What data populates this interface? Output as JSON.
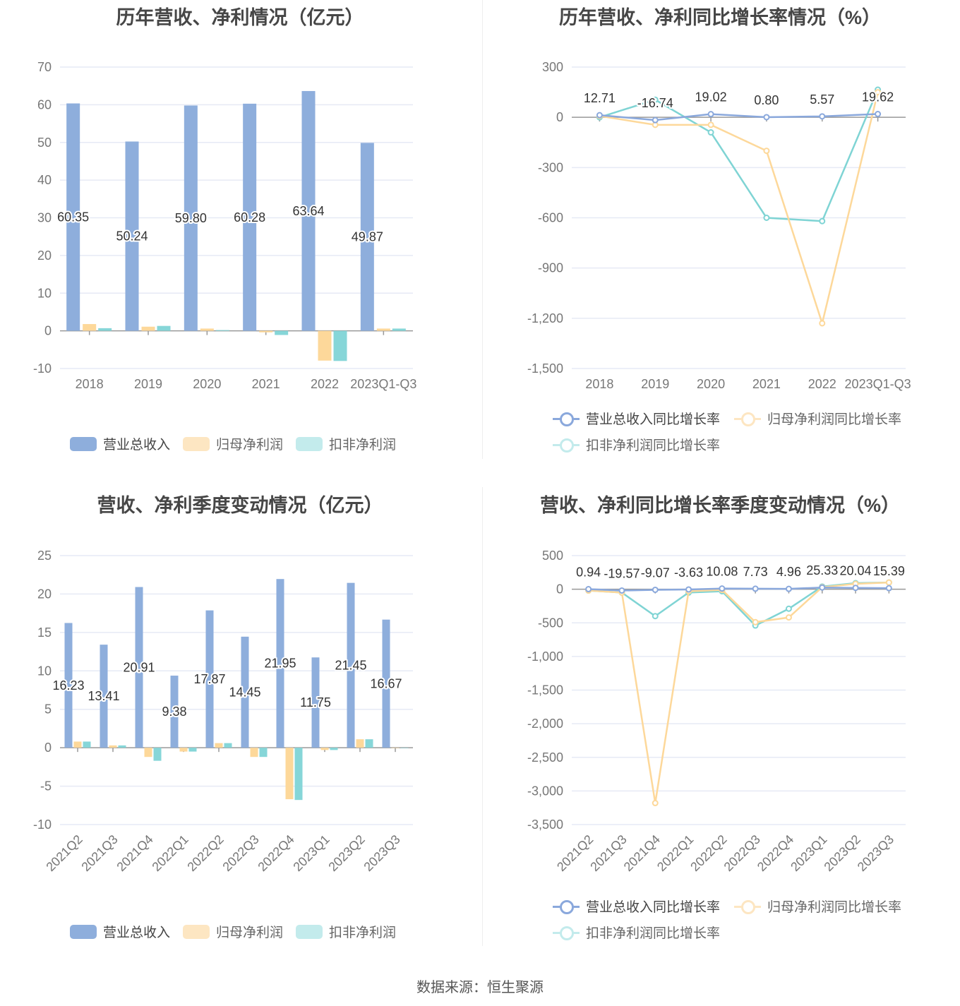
{
  "colors": {
    "revenue": "#8eaedc",
    "net_profit": "#fdd89a",
    "deducted_profit": "#86d6d8",
    "grid": "#e6eaf5",
    "axis": "#999999"
  },
  "source": "数据来源：恒生聚源",
  "chart_data": [
    {
      "type": "bar",
      "title": "历年营收、净利情况（亿元）",
      "categories": [
        "2018",
        "2019",
        "2020",
        "2021",
        "2022",
        "2023Q1-Q3"
      ],
      "series": [
        {
          "name": "营业总收入",
          "values": [
            60.35,
            50.24,
            59.8,
            60.28,
            63.64,
            49.87
          ],
          "labels": [
            "60.35",
            "50.24",
            "59.80",
            "60.28",
            "63.64",
            "49.87"
          ]
        },
        {
          "name": "归母净利润",
          "values": [
            1.8,
            1.1,
            0.6,
            -0.4,
            -7.9,
            0.6
          ]
        },
        {
          "name": "扣非净利润",
          "values": [
            0.7,
            1.3,
            0.2,
            -1.1,
            -8.0,
            0.6
          ]
        }
      ],
      "ylim": [
        -10,
        70
      ],
      "yticks": [
        "70",
        "60",
        "50",
        "40",
        "30",
        "20",
        "10",
        "0",
        "-10"
      ],
      "ytick_values": [
        70,
        60,
        50,
        40,
        30,
        20,
        10,
        0,
        -10
      ],
      "legend": "bottom"
    },
    {
      "type": "line",
      "title": "历年营收、净利同比增长率情况（%）",
      "categories": [
        "2018",
        "2019",
        "2020",
        "2021",
        "2022",
        "2023Q1-Q3"
      ],
      "series": [
        {
          "name": "营业总收入同比增长率",
          "values": [
            12.71,
            -16.74,
            19.02,
            0.8,
            5.57,
            19.62
          ],
          "labels": [
            "12.71",
            "-16.74",
            "19.02",
            "0.80",
            "5.57",
            "19.62"
          ]
        },
        {
          "name": "归母净利润同比增长率",
          "values": [
            8,
            -45,
            -45,
            -200,
            -1230,
            150
          ]
        },
        {
          "name": "扣非净利润同比增长率",
          "values": [
            0,
            105,
            -90,
            -600,
            -620,
            165
          ]
        }
      ],
      "ylim": [
        -1500,
        300
      ],
      "yticks": [
        "300",
        "0",
        "-300",
        "-600",
        "-900",
        "-1,200",
        "-1,500"
      ],
      "ytick_values": [
        300,
        0,
        -300,
        -600,
        -900,
        -1200,
        -1500
      ],
      "legend": "bottom"
    },
    {
      "type": "bar",
      "title": "营收、净利季度变动情况（亿元）",
      "categories": [
        "2021Q2",
        "2021Q3",
        "2021Q4",
        "2022Q1",
        "2022Q2",
        "2022Q3",
        "2022Q4",
        "2023Q1",
        "2023Q2",
        "2023Q3"
      ],
      "series": [
        {
          "name": "营业总收入",
          "values": [
            16.23,
            13.41,
            20.91,
            9.38,
            17.87,
            14.45,
            21.95,
            11.75,
            21.45,
            16.67
          ],
          "labels": [
            "16.23",
            "13.41",
            "20.91",
            "9.38",
            "17.87",
            "14.45",
            "21.95",
            "11.75",
            "21.45",
            "16.67"
          ]
        },
        {
          "name": "归母净利润",
          "values": [
            0.8,
            0.3,
            -1.2,
            -0.5,
            0.6,
            -1.2,
            -6.7,
            -0.3,
            1.1,
            0
          ]
        },
        {
          "name": "扣非净利润",
          "values": [
            0.8,
            0.3,
            -1.7,
            -0.5,
            0.6,
            -1.2,
            -6.8,
            -0.3,
            1.1,
            0
          ]
        }
      ],
      "ylim": [
        -10,
        25
      ],
      "yticks": [
        "25",
        "20",
        "15",
        "10",
        "5",
        "0",
        "-5",
        "-10"
      ],
      "ytick_values": [
        25,
        20,
        15,
        10,
        5,
        0,
        -5,
        -10
      ],
      "legend": "bottom"
    },
    {
      "type": "line",
      "title": "营收、净利同比增长率季度变动情况（%）",
      "categories": [
        "2021Q2",
        "2021Q3",
        "2021Q4",
        "2022Q1",
        "2022Q2",
        "2022Q3",
        "2022Q4",
        "2023Q1",
        "2023Q2",
        "2023Q3"
      ],
      "series": [
        {
          "name": "营业总收入同比增长率",
          "values": [
            0.94,
            -19.57,
            -9.07,
            -3.63,
            10.08,
            7.73,
            4.96,
            25.33,
            20.04,
            15.39
          ],
          "labels": [
            "0.94",
            "-19.57",
            "-9.07",
            "-3.63",
            "10.08",
            "7.73",
            "4.96",
            "25.33",
            "20.04",
            "15.39"
          ]
        },
        {
          "name": "归母净利润同比增长率",
          "values": [
            -20,
            -50,
            -3180,
            -30,
            -10,
            -490,
            -420,
            30,
            80,
            100
          ]
        },
        {
          "name": "扣非净利润同比增长率",
          "values": [
            -20,
            -50,
            -400,
            -50,
            -30,
            -540,
            -290,
            40,
            90,
            100
          ]
        }
      ],
      "ylim": [
        -3500,
        500
      ],
      "yticks": [
        "500",
        "0",
        "-500",
        "-1,000",
        "-1,500",
        "-2,000",
        "-2,500",
        "-3,000",
        "-3,500"
      ],
      "ytick_values": [
        500,
        0,
        -500,
        -1000,
        -1500,
        -2000,
        -2500,
        -3000,
        -3500
      ],
      "legend": "bottom"
    }
  ]
}
